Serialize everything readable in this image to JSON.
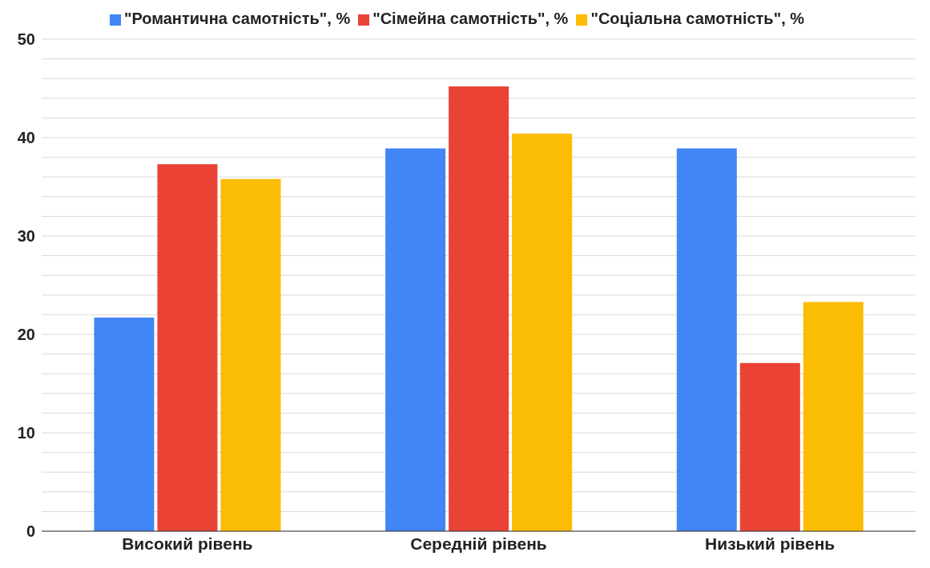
{
  "chart_data": {
    "type": "bar",
    "categories": [
      "Високий рівень",
      "Середній рівень",
      "Низький рівень"
    ],
    "series": [
      {
        "name": "\"Романтична самотність\", %",
        "color": "#4285f4",
        "values": [
          21.7,
          38.9,
          38.9
        ]
      },
      {
        "name": "\"Сімейна самотність\", %",
        "color": "#ea4335",
        "values": [
          37.3,
          45.2,
          17.1
        ]
      },
      {
        "name": "\"Соціальна самотність\", %",
        "color": "#fbbc04",
        "values": [
          35.8,
          40.4,
          23.3
        ]
      }
    ],
    "ylim": [
      0,
      50
    ],
    "yticks": [
      0,
      {
        "value": 2,
        "label": null
      },
      {
        "value": 4,
        "label": null
      },
      {
        "value": 6,
        "label": null
      },
      {
        "value": 8,
        "label": null
      },
      10,
      {
        "value": 12,
        "label": null
      },
      {
        "value": 14,
        "label": null
      },
      {
        "value": 16,
        "label": null
      },
      {
        "value": 18,
        "label": null
      },
      20,
      {
        "value": 22,
        "label": null
      },
      {
        "value": 24,
        "label": null
      },
      {
        "value": 26,
        "label": null
      },
      {
        "value": 28,
        "label": null
      },
      30,
      {
        "value": 32,
        "label": null
      },
      {
        "value": 34,
        "label": null
      },
      {
        "value": 36,
        "label": null
      },
      {
        "value": 38,
        "label": null
      },
      40,
      {
        "value": 42,
        "label": null
      },
      {
        "value": 44,
        "label": null
      },
      {
        "value": 46,
        "label": null
      },
      {
        "value": 48,
        "label": null
      },
      50
    ],
    "grid": "y",
    "legend": "top"
  }
}
